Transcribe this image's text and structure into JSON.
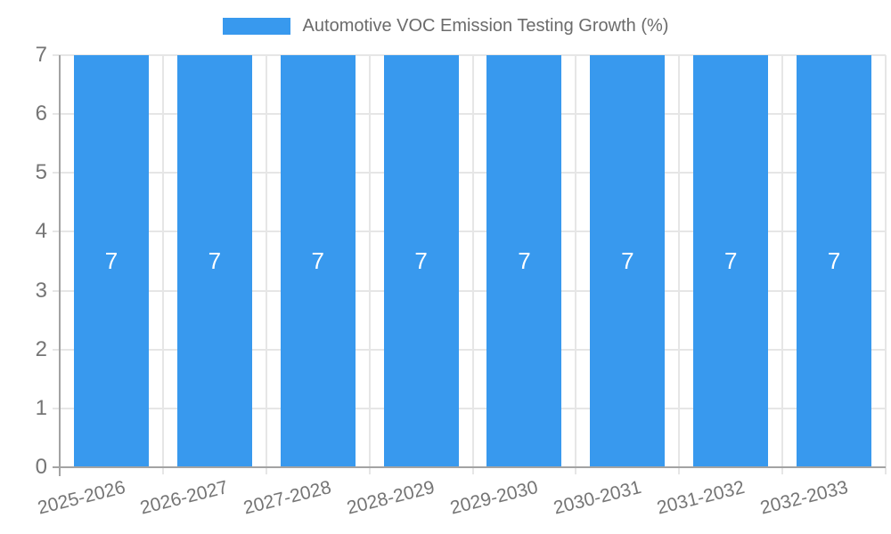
{
  "chart_data": {
    "type": "bar",
    "title": "Automotive VOC Emission Testing Growth (%)",
    "categories": [
      "2025-2026",
      "2026-2027",
      "2027-2028",
      "2028-2029",
      "2029-2030",
      "2030-2031",
      "2031-2032",
      "2032-2033"
    ],
    "values": [
      7,
      7,
      7,
      7,
      7,
      7,
      7,
      7
    ],
    "bar_labels": [
      "7",
      "7",
      "7",
      "7",
      "7",
      "7",
      "7",
      "7"
    ],
    "xlabel": "",
    "ylabel": "",
    "ylim": [
      0,
      7
    ],
    "yticks": [
      0,
      1,
      2,
      3,
      4,
      5,
      6,
      7
    ],
    "grid": true,
    "legend_position": "top"
  },
  "colors": {
    "bar": "#3899ee",
    "bar_label": "#ffffff",
    "legend_text": "#6b6b6b",
    "axis_text": "#757575",
    "gridline": "#e6e6e6",
    "axis_line": "#a3a3a3",
    "background": "#ffffff"
  }
}
